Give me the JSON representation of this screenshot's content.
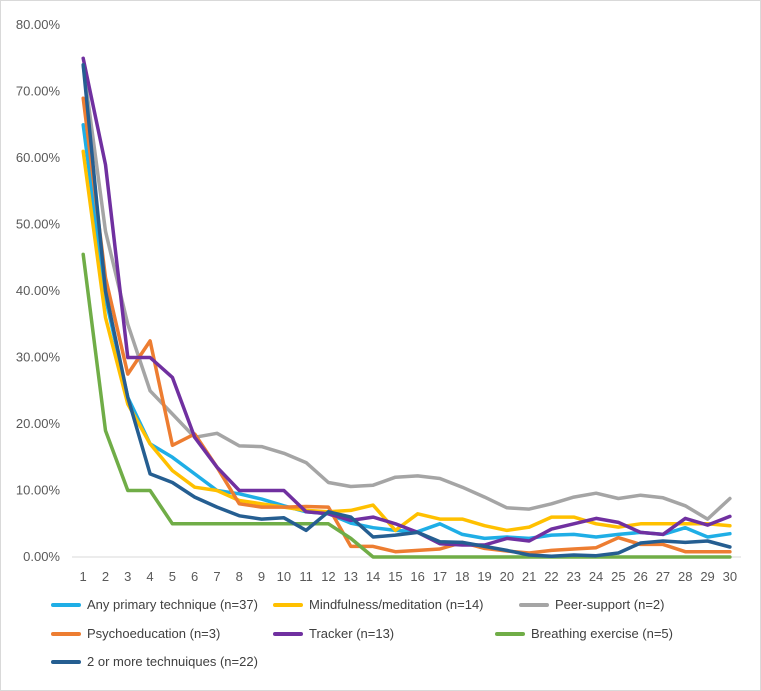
{
  "chart_data": {
    "type": "line",
    "title": "",
    "xlabel": "",
    "ylabel": "",
    "ylim": [
      0,
      0.8
    ],
    "y_ticks": [
      "0.00%",
      "10.00%",
      "20.00%",
      "30.00%",
      "40.00%",
      "50.00%",
      "60.00%",
      "70.00%",
      "80.00%"
    ],
    "grid": false,
    "legend_position": "bottom",
    "x": [
      1,
      2,
      3,
      4,
      5,
      6,
      7,
      8,
      9,
      10,
      11,
      12,
      13,
      14,
      15,
      16,
      17,
      18,
      19,
      20,
      21,
      22,
      23,
      24,
      25,
      26,
      27,
      28,
      29,
      30
    ],
    "series": [
      {
        "name": "Any primary technique (n=37)",
        "color": "#1FAEE6",
        "values": [
          0.65,
          0.39,
          0.24,
          0.17,
          0.15,
          0.125,
          0.1,
          0.095,
          0.087,
          0.077,
          0.068,
          0.065,
          0.051,
          0.044,
          0.04,
          0.038,
          0.05,
          0.034,
          0.028,
          0.03,
          0.028,
          0.033,
          0.034,
          0.03,
          0.034,
          0.037,
          0.034,
          0.044,
          0.03,
          0.035
        ]
      },
      {
        "name": "Mindfulness/meditation (n=14)",
        "color": "#FFC000",
        "values": [
          0.61,
          0.36,
          0.23,
          0.17,
          0.13,
          0.105,
          0.1,
          0.085,
          0.08,
          0.075,
          0.07,
          0.068,
          0.07,
          0.078,
          0.04,
          0.065,
          0.057,
          0.057,
          0.047,
          0.04,
          0.045,
          0.06,
          0.06,
          0.05,
          0.045,
          0.05,
          0.05,
          0.05,
          0.05,
          0.047
        ]
      },
      {
        "name": "Peer-support (n=2)",
        "color": "#A5A5A5",
        "values": [
          0.74,
          0.49,
          0.35,
          0.25,
          0.215,
          0.18,
          0.186,
          0.167,
          0.166,
          0.156,
          0.142,
          0.112,
          0.106,
          0.108,
          0.12,
          0.122,
          0.118,
          0.105,
          0.09,
          0.074,
          0.072,
          0.08,
          0.09,
          0.096,
          0.088,
          0.093,
          0.089,
          0.077,
          0.057,
          0.088
        ]
      },
      {
        "name": "Psychoeducation (n=3)",
        "color": "#ED7D31",
        "values": [
          0.69,
          0.42,
          0.275,
          0.325,
          0.168,
          0.185,
          0.135,
          0.08,
          0.075,
          0.075,
          0.076,
          0.075,
          0.016,
          0.016,
          0.008,
          0.01,
          0.012,
          0.022,
          0.013,
          0.009,
          0.006,
          0.01,
          0.012,
          0.014,
          0.029,
          0.019,
          0.019,
          0.008,
          0.008,
          0.008
        ]
      },
      {
        "name": "Tracker (n=13)",
        "color": "#7030A0",
        "values": [
          0.75,
          0.59,
          0.3,
          0.3,
          0.27,
          0.18,
          0.135,
          0.1,
          0.1,
          0.1,
          0.068,
          0.065,
          0.055,
          0.06,
          0.05,
          0.037,
          0.02,
          0.018,
          0.018,
          0.028,
          0.024,
          0.042,
          0.05,
          0.058,
          0.052,
          0.037,
          0.034,
          0.058,
          0.048,
          0.061
        ]
      },
      {
        "name": "Breathing exercise (n=5)",
        "color": "#70AD47",
        "values": [
          0.455,
          0.19,
          0.1,
          0.1,
          0.05,
          0.05,
          0.05,
          0.05,
          0.05,
          0.05,
          0.05,
          0.05,
          0.028,
          0.0,
          0.0,
          0.0,
          0.0,
          0.0,
          0.0,
          0.0,
          0.0,
          0.0,
          0.0,
          0.0,
          0.0,
          0.0,
          0.0,
          0.0,
          0.0,
          0.0
        ]
      },
      {
        "name": "2 or more techniques (n=22)",
        "color": "#255E91",
        "values": [
          0.74,
          0.4,
          0.24,
          0.125,
          0.112,
          0.09,
          0.075,
          0.062,
          0.057,
          0.059,
          0.04,
          0.068,
          0.06,
          0.03,
          0.033,
          0.037,
          0.023,
          0.022,
          0.016,
          0.01,
          0.003,
          0.001,
          0.003,
          0.002,
          0.006,
          0.021,
          0.024,
          0.022,
          0.024,
          0.015
        ]
      }
    ]
  },
  "legend": [
    {
      "label": "Any primary technique (n=37)",
      "color": "#1FAEE6"
    },
    {
      "label": "Mindfulness/meditation (n=14)",
      "color": "#FFC000"
    },
    {
      "label": "Peer-support (n=2)",
      "color": "#A5A5A5"
    },
    {
      "label": "Psychoeducation (n=3)",
      "color": "#ED7D31"
    },
    {
      "label": "Tracker (n=13)",
      "color": "#7030A0"
    },
    {
      "label": "Breathing exercise (n=5)",
      "color": "#70AD47"
    },
    {
      "label": "2 or more technuiques (n=22)",
      "color": "#255E91"
    }
  ]
}
